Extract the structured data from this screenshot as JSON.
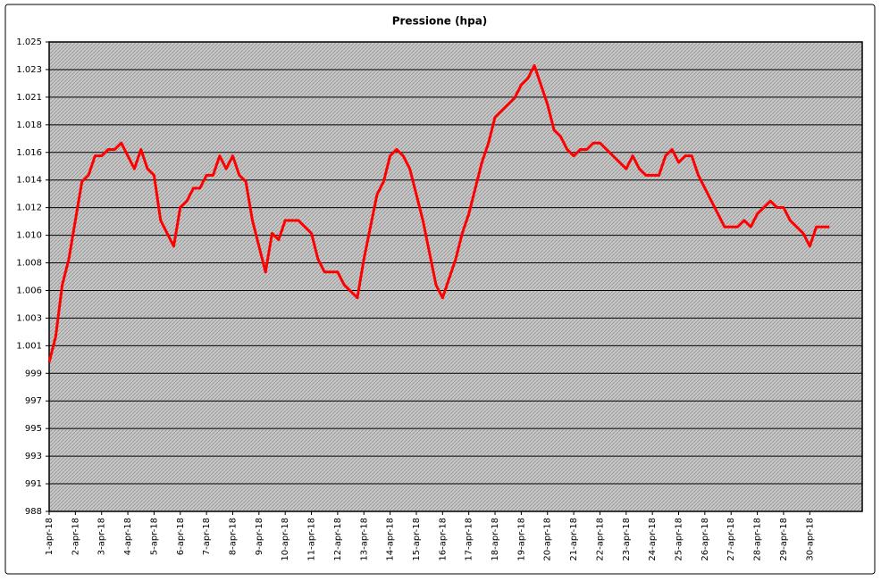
{
  "chart_data": {
    "type": "line",
    "title": "Pressione (hpa)",
    "x": [
      "1-apr-18",
      null,
      null,
      null,
      "2-apr-18",
      null,
      null,
      null,
      "3-apr-18",
      null,
      null,
      null,
      "4-apr-18",
      null,
      null,
      null,
      "5-apr-18",
      null,
      null,
      null,
      "6-apr-18",
      null,
      null,
      null,
      "7-apr-18",
      null,
      null,
      null,
      "8-apr-18",
      null,
      null,
      null,
      "9-apr-18",
      null,
      null,
      null,
      "10-apr-18",
      null,
      null,
      null,
      "11-apr-18",
      null,
      null,
      null,
      "12-apr-18",
      null,
      null,
      null,
      "13-apr-18",
      null,
      null,
      null,
      "14-apr-18",
      null,
      null,
      null,
      "15-apr-18",
      null,
      null,
      null,
      "16-apr-18",
      null,
      null,
      null,
      "17-apr-18",
      null,
      null,
      null,
      "18-apr-18",
      null,
      null,
      null,
      "19-apr-18",
      null,
      null,
      null,
      "20-apr-18",
      null,
      null,
      null,
      "21-apr-18",
      null,
      null,
      null,
      "22-apr-18",
      null,
      null,
      null,
      "23-apr-18",
      null,
      null,
      null,
      "24-apr-18",
      null,
      null,
      null,
      "25-apr-18",
      null,
      null,
      null,
      "26-apr-18",
      null,
      null,
      null,
      "27-apr-18",
      null,
      null,
      null,
      "28-apr-18",
      null,
      null,
      null,
      "29-apr-18",
      null,
      null,
      null,
      "30-apr-18",
      null,
      null,
      null
    ],
    "series": [
      {
        "color": "#ff0000",
        "values": [
          1000,
          1002,
          1006,
          1008,
          1011,
          1014,
          1014.5,
          1016,
          1016,
          1016.5,
          1016.5,
          1017,
          1016,
          1015,
          1016.5,
          1015,
          1014.5,
          1011,
          1010,
          1009,
          1012,
          1012.5,
          1013.5,
          1013.5,
          1014.5,
          1014.5,
          1016,
          1015,
          1016,
          1014.5,
          1014,
          1011,
          1009,
          1007,
          1010,
          1009.5,
          1011,
          1011,
          1011,
          1010.5,
          1010,
          1008,
          1007,
          1007,
          1007,
          1006,
          1005.5,
          1005,
          1008,
          1010.5,
          1013,
          1014,
          1016,
          1016.5,
          1016,
          1015,
          1013,
          1011,
          1008.5,
          1006,
          1005,
          1006.5,
          1008,
          1010,
          1011.5,
          1013.5,
          1015.5,
          1017,
          1019,
          1019.5,
          1020,
          1020.5,
          1021.5,
          1022,
          1023,
          1021.5,
          1020,
          1018,
          1017.5,
          1016.5,
          1016,
          1016.5,
          1016.5,
          1017,
          1017,
          1016.5,
          1016,
          1015.5,
          1015,
          1016,
          1015,
          1014.5,
          1014.5,
          1014.5,
          1016,
          1016.5,
          1015.5,
          1016,
          1016,
          1014.5,
          1013.5,
          1012.5,
          1011.5,
          1010.5,
          1010.5,
          1010.5,
          1011,
          1010.5,
          1011.5,
          1012,
          1012.5,
          1012,
          1012,
          1011,
          1010.5,
          1010,
          1009,
          1010.5,
          1010.5,
          1010.5
        ]
      }
    ],
    "ylim": [
      988.45,
      1024.83
    ],
    "yticks": [
      {
        "value": 988.45,
        "label": "988"
      },
      {
        "value": 990.59,
        "label": "991"
      },
      {
        "value": 992.73,
        "label": "993"
      },
      {
        "value": 994.87,
        "label": "995"
      },
      {
        "value": 997.01,
        "label": "997"
      },
      {
        "value": 999.15,
        "label": "999"
      },
      {
        "value": 1001.29,
        "label": "1.001"
      },
      {
        "value": 1003.43,
        "label": "1.003"
      },
      {
        "value": 1005.57,
        "label": "1.006"
      },
      {
        "value": 1007.71,
        "label": "1.008"
      },
      {
        "value": 1009.85,
        "label": "1.010"
      },
      {
        "value": 1011.99,
        "label": "1.012"
      },
      {
        "value": 1014.13,
        "label": "1.014"
      },
      {
        "value": 1016.27,
        "label": "1.016"
      },
      {
        "value": 1018.41,
        "label": "1.018"
      },
      {
        "value": 1020.55,
        "label": "1.021"
      },
      {
        "value": 1022.69,
        "label": "1.023"
      },
      {
        "value": 1024.83,
        "label": "1.025"
      }
    ],
    "grid": true
  }
}
